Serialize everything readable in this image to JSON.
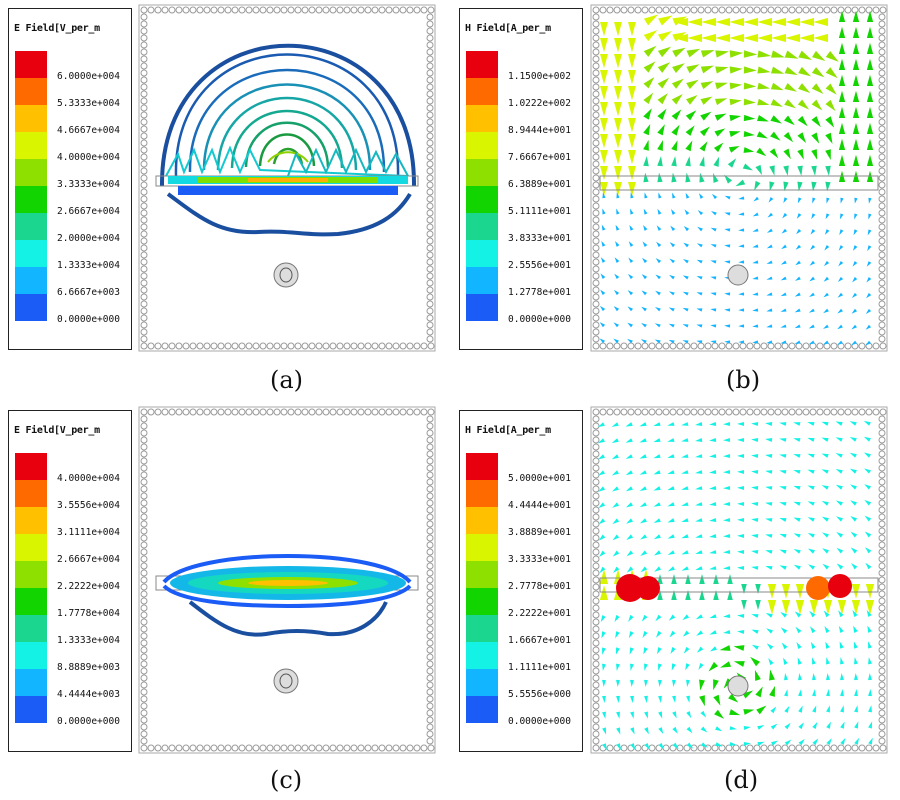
{
  "colors": [
    "#e8000e",
    "#ff6a00",
    "#ffc000",
    "#d9f500",
    "#8ee000",
    "#12d400",
    "#1bd68f",
    "#14f2e6",
    "#12b5ff",
    "#1a5cf5",
    "#1400e6"
  ],
  "panels": [
    {
      "id": "a",
      "legend_title": "E Field[V_per_m",
      "labels": [
        "6.0000e+004",
        "5.3333e+004",
        "4.6667e+004",
        "4.0000e+004",
        "3.3333e+004",
        "2.6667e+004",
        "2.0000e+004",
        "1.3333e+004",
        "6.6667e+003",
        "0.0000e+000"
      ],
      "caption": "(a)"
    },
    {
      "id": "b",
      "legend_title": "H Field[A_per_m",
      "labels": [
        "1.1500e+002",
        "1.0222e+002",
        "8.9444e+001",
        "7.6667e+001",
        "6.3889e+001",
        "5.1111e+001",
        "3.8333e+001",
        "2.5556e+001",
        "1.2778e+001",
        "0.0000e+000"
      ],
      "caption": "(b)"
    },
    {
      "id": "c",
      "legend_title": "E Field[V_per_m",
      "labels": [
        "4.0000e+004",
        "3.5556e+004",
        "3.1111e+004",
        "2.6667e+004",
        "2.2222e+004",
        "1.7778e+004",
        "1.3333e+004",
        "8.8889e+003",
        "4.4444e+003",
        "0.0000e+000"
      ],
      "caption": "(c)"
    },
    {
      "id": "d",
      "legend_title": "H Field[A_per_m",
      "labels": [
        "5.0000e+001",
        "4.4444e+001",
        "3.8889e+001",
        "3.3333e+001",
        "2.7778e+001",
        "2.2222e+001",
        "1.6667e+001",
        "1.1111e+001",
        "5.5556e+000",
        "0.0000e+000"
      ],
      "caption": "(d)"
    }
  ]
}
